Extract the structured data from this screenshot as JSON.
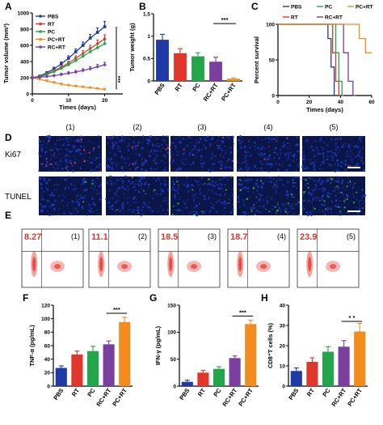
{
  "panel_labels": [
    "A",
    "B",
    "C",
    "D",
    "E",
    "F",
    "G",
    "H"
  ],
  "colors": {
    "PBS": "#1f3aa6",
    "RT": "#e0362c",
    "PC": "#23a64a",
    "RC+RT": "#7b3fa0",
    "PC+RT": "#f28c1e",
    "nucleus": "#1c36b8",
    "ki67": "#e0406a",
    "tunel": "#3fbf3a",
    "flow_density": "#e8322a",
    "flow_pct": "#e8322a"
  },
  "groups": [
    "PBS",
    "RT",
    "PC",
    "RC+RT",
    "PC+RT"
  ],
  "sample_numbers": [
    "(1)",
    "(2)",
    "(3)",
    "(4)",
    "(5)"
  ],
  "stain_labels": [
    "Ki67",
    "TUNEL"
  ],
  "flow_percentages": [
    "8.27",
    "11.1",
    "18.5",
    "18.7",
    "23.9"
  ],
  "chart_data": [
    {
      "panel": "A",
      "type": "line",
      "xlabel": "Times (days)",
      "ylabel": "Tumor volume (mm³)",
      "xlim": [
        0,
        25
      ],
      "ylim": [
        0,
        1000
      ],
      "xticks": [
        0,
        10,
        20
      ],
      "yticks": [
        0,
        200,
        400,
        600,
        800,
        1000
      ],
      "x": [
        0,
        2,
        4,
        6,
        8,
        10,
        12,
        14,
        16,
        18,
        20
      ],
      "series": [
        {
          "name": "PBS",
          "values": [
            200,
            220,
            260,
            310,
            370,
            440,
            520,
            600,
            690,
            760,
            830
          ],
          "err": [
            10,
            12,
            15,
            20,
            25,
            30,
            35,
            40,
            45,
            55,
            65
          ]
        },
        {
          "name": "RT",
          "values": [
            200,
            215,
            245,
            285,
            330,
            380,
            440,
            500,
            560,
            620,
            680
          ],
          "err": [
            10,
            12,
            15,
            18,
            22,
            25,
            30,
            35,
            40,
            45,
            50
          ]
        },
        {
          "name": "PC",
          "values": [
            200,
            213,
            240,
            275,
            315,
            360,
            410,
            465,
            520,
            570,
            620
          ],
          "err": [
            10,
            12,
            14,
            18,
            20,
            24,
            28,
            32,
            36,
            40,
            45
          ]
        },
        {
          "name": "PC+RT",
          "values": [
            200,
            180,
            160,
            140,
            120,
            105,
            95,
            85,
            75,
            65,
            55
          ],
          "err": [
            10,
            10,
            10,
            10,
            10,
            10,
            10,
            10,
            10,
            10,
            10
          ]
        },
        {
          "name": "RC+RT",
          "values": [
            200,
            205,
            215,
            225,
            240,
            255,
            270,
            290,
            310,
            335,
            360
          ],
          "err": [
            10,
            10,
            12,
            14,
            16,
            18,
            20,
            22,
            25,
            28,
            30
          ]
        }
      ],
      "annotation": "***"
    },
    {
      "panel": "B",
      "type": "bar",
      "ylabel": "Tumor weight (g)",
      "ylim": [
        0,
        1.5
      ],
      "yticks": [
        0.0,
        0.5,
        1.0,
        1.5
      ],
      "categories": [
        "PBS",
        "RT",
        "PC",
        "RC+RT",
        "PC+RT"
      ],
      "values": [
        0.92,
        0.62,
        0.55,
        0.43,
        0.05
      ],
      "err": [
        0.12,
        0.1,
        0.08,
        0.1,
        0.02
      ],
      "annotation": "***"
    },
    {
      "panel": "C",
      "type": "line",
      "xlabel": "Times (days)",
      "ylabel": "Percent survival",
      "xlim": [
        0,
        60
      ],
      "ylim": [
        0,
        100
      ],
      "xticks": [
        0,
        20,
        40,
        60
      ],
      "yticks": [
        0,
        50,
        100
      ],
      "series": [
        {
          "name": "PBS",
          "steps": [
            [
              0,
              100
            ],
            [
              32,
              100
            ],
            [
              32,
              80
            ],
            [
              34,
              80
            ],
            [
              34,
              40
            ],
            [
              36,
              40
            ],
            [
              36,
              0
            ],
            [
              37,
              0
            ]
          ]
        },
        {
          "name": "RT",
          "steps": [
            [
              0,
              100
            ],
            [
              35,
              100
            ],
            [
              35,
              60
            ],
            [
              37,
              60
            ],
            [
              37,
              20
            ],
            [
              39,
              20
            ],
            [
              39,
              0
            ],
            [
              40,
              0
            ]
          ]
        },
        {
          "name": "PC",
          "steps": [
            [
              0,
              100
            ],
            [
              37,
              100
            ],
            [
              37,
              60
            ],
            [
              39,
              60
            ],
            [
              39,
              20
            ],
            [
              41,
              20
            ],
            [
              41,
              0
            ],
            [
              42,
              0
            ]
          ]
        },
        {
          "name": "RC+RT",
          "steps": [
            [
              0,
              100
            ],
            [
              42,
              100
            ],
            [
              42,
              60
            ],
            [
              45,
              60
            ],
            [
              45,
              20
            ],
            [
              48,
              20
            ],
            [
              48,
              0
            ],
            [
              50,
              0
            ]
          ]
        },
        {
          "name": "PC+RT",
          "steps": [
            [
              0,
              100
            ],
            [
              52,
              100
            ],
            [
              52,
              80
            ],
            [
              56,
              80
            ],
            [
              56,
              60
            ],
            [
              60,
              60
            ]
          ]
        }
      ]
    },
    {
      "panel": "F",
      "type": "bar",
      "ylabel": "TNF-α (pg/mL)",
      "ylim": [
        0,
        120
      ],
      "yticks": [
        0,
        20,
        40,
        60,
        80,
        100,
        120
      ],
      "categories": [
        "PBS",
        "RT",
        "PC",
        "RC+RT",
        "PC+RT"
      ],
      "values": [
        27,
        47,
        52,
        62,
        95
      ],
      "err": [
        3,
        5,
        7,
        5,
        7
      ],
      "annotation": "***"
    },
    {
      "panel": "G",
      "type": "bar",
      "ylabel": "IFN-γ (pg/mL)",
      "ylim": [
        0,
        150
      ],
      "yticks": [
        0,
        50,
        100,
        150
      ],
      "categories": [
        "PBS",
        "RT",
        "PC",
        "RC+RT",
        "PC+RT"
      ],
      "values": [
        8,
        25,
        32,
        52,
        115
      ],
      "err": [
        3,
        4,
        4,
        4,
        7
      ],
      "annotation": "***"
    },
    {
      "panel": "H",
      "type": "bar",
      "ylabel": "CD8⁺T cells (%)",
      "ylim": [
        0,
        40
      ],
      "yticks": [
        0,
        10,
        20,
        30,
        40
      ],
      "categories": [
        "PBS",
        "RT",
        "PC",
        "RC+RT",
        "PC+RT"
      ],
      "values": [
        7.5,
        12,
        17,
        19.5,
        27
      ],
      "err": [
        1.5,
        2,
        2.5,
        3,
        4
      ],
      "annotation": "* *"
    }
  ]
}
